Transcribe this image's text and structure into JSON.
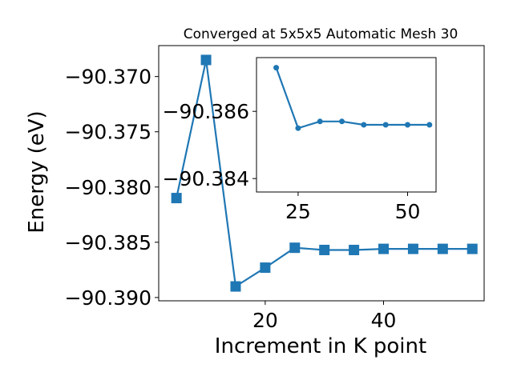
{
  "chart_data": [
    {
      "type": "line",
      "title": "Converged at 5x5x5 Automatic Mesh 30",
      "xlabel": "Increment in K point",
      "ylabel": "Energy (eV)",
      "xlim": [
        2,
        57
      ],
      "ylim": [
        -90.3903,
        -90.3672
      ],
      "xticks": [
        "20",
        "40"
      ],
      "yticks": [
        "−90.370",
        "−90.375",
        "−90.380",
        "−90.385",
        "−90.390"
      ],
      "x": [
        5,
        10,
        15,
        20,
        25,
        30,
        35,
        40,
        45,
        50,
        55
      ],
      "values": [
        -90.381,
        -90.3685,
        -90.389,
        -90.3873,
        -90.3855,
        -90.3857,
        -90.3857,
        -90.3856,
        -90.3856,
        -90.3856,
        -90.3856
      ],
      "color": "#1f77b4",
      "marker": "square",
      "grid": false
    },
    {
      "type": "line",
      "title": "",
      "xlim": [
        15.5,
        56.5
      ],
      "ylim": [
        -90.3836,
        -90.3876
      ],
      "xticks": [
        "25",
        "50"
      ],
      "yticks": [
        "−90.386",
        "−90.384"
      ],
      "x": [
        20,
        25,
        30,
        35,
        40,
        45,
        50,
        55
      ],
      "values": [
        -90.3873,
        -90.3855,
        -90.3857,
        -90.3857,
        -90.3856,
        -90.3856,
        -90.3856,
        -90.3856
      ],
      "color": "#1f77b4",
      "marker": "circle",
      "grid": false
    }
  ]
}
